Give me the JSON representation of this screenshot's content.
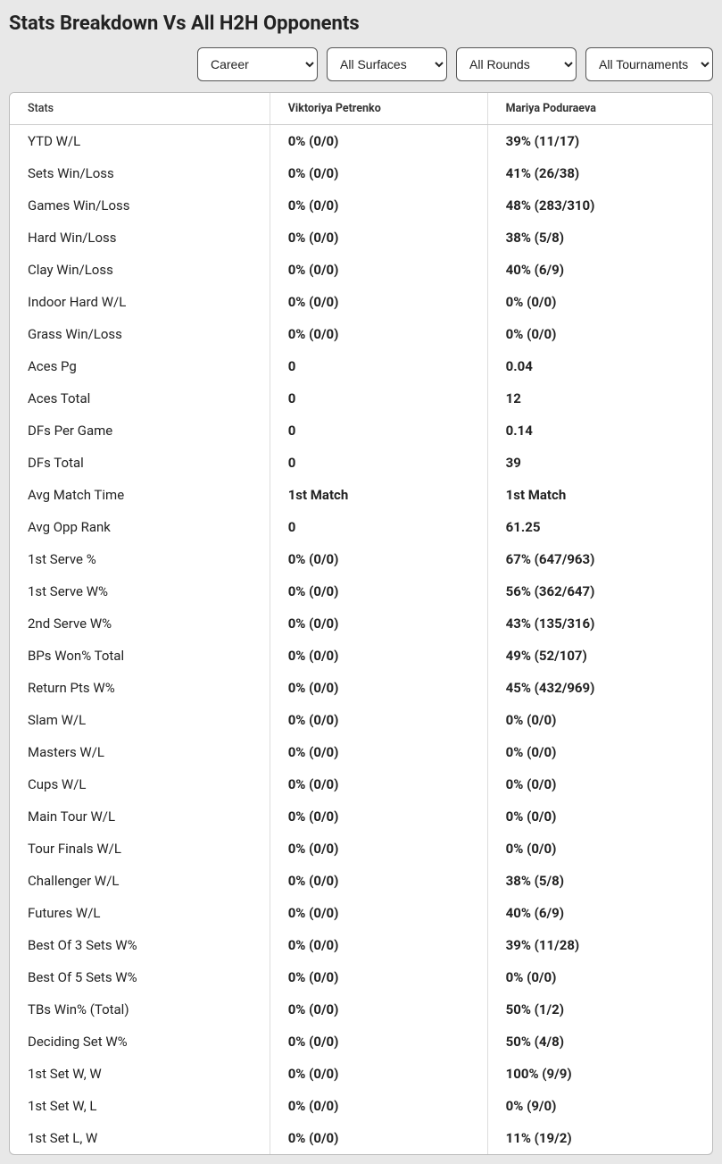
{
  "title": "Stats Breakdown Vs All H2H Opponents",
  "filters": {
    "period": "Career",
    "surface": "All Surfaces",
    "round": "All Rounds",
    "tournament": "All Tournaments"
  },
  "columns": {
    "stats": "Stats",
    "player1": "Viktoriya Petrenko",
    "player2": "Mariya Poduraeva"
  },
  "rows": [
    {
      "label": "YTD W/L",
      "p1": "0% (0/0)",
      "p2": "39% (11/17)"
    },
    {
      "label": "Sets Win/Loss",
      "p1": "0% (0/0)",
      "p2": "41% (26/38)"
    },
    {
      "label": "Games Win/Loss",
      "p1": "0% (0/0)",
      "p2": "48% (283/310)"
    },
    {
      "label": "Hard Win/Loss",
      "p1": "0% (0/0)",
      "p2": "38% (5/8)"
    },
    {
      "label": "Clay Win/Loss",
      "p1": "0% (0/0)",
      "p2": "40% (6/9)"
    },
    {
      "label": "Indoor Hard W/L",
      "p1": "0% (0/0)",
      "p2": "0% (0/0)"
    },
    {
      "label": "Grass Win/Loss",
      "p1": "0% (0/0)",
      "p2": "0% (0/0)"
    },
    {
      "label": "Aces Pg",
      "p1": "0",
      "p2": "0.04"
    },
    {
      "label": "Aces Total",
      "p1": "0",
      "p2": "12"
    },
    {
      "label": "DFs Per Game",
      "p1": "0",
      "p2": "0.14"
    },
    {
      "label": "DFs Total",
      "p1": "0",
      "p2": "39"
    },
    {
      "label": "Avg Match Time",
      "p1": "1st Match",
      "p2": "1st Match"
    },
    {
      "label": "Avg Opp Rank",
      "p1": "0",
      "p2": "61.25"
    },
    {
      "label": "1st Serve %",
      "p1": "0% (0/0)",
      "p2": "67% (647/963)"
    },
    {
      "label": "1st Serve W%",
      "p1": "0% (0/0)",
      "p2": "56% (362/647)"
    },
    {
      "label": "2nd Serve W%",
      "p1": "0% (0/0)",
      "p2": "43% (135/316)"
    },
    {
      "label": "BPs Won% Total",
      "p1": "0% (0/0)",
      "p2": "49% (52/107)"
    },
    {
      "label": "Return Pts W%",
      "p1": "0% (0/0)",
      "p2": "45% (432/969)"
    },
    {
      "label": "Slam W/L",
      "p1": "0% (0/0)",
      "p2": "0% (0/0)"
    },
    {
      "label": "Masters W/L",
      "p1": "0% (0/0)",
      "p2": "0% (0/0)"
    },
    {
      "label": "Cups W/L",
      "p1": "0% (0/0)",
      "p2": "0% (0/0)"
    },
    {
      "label": "Main Tour W/L",
      "p1": "0% (0/0)",
      "p2": "0% (0/0)"
    },
    {
      "label": "Tour Finals W/L",
      "p1": "0% (0/0)",
      "p2": "0% (0/0)"
    },
    {
      "label": "Challenger W/L",
      "p1": "0% (0/0)",
      "p2": "38% (5/8)"
    },
    {
      "label": "Futures W/L",
      "p1": "0% (0/0)",
      "p2": "40% (6/9)"
    },
    {
      "label": "Best Of 3 Sets W%",
      "p1": "0% (0/0)",
      "p2": "39% (11/28)"
    },
    {
      "label": "Best Of 5 Sets W%",
      "p1": "0% (0/0)",
      "p2": "0% (0/0)"
    },
    {
      "label": "TBs Win% (Total)",
      "p1": "0% (0/0)",
      "p2": "50% (1/2)"
    },
    {
      "label": "Deciding Set W%",
      "p1": "0% (0/0)",
      "p2": "50% (4/8)"
    },
    {
      "label": "1st Set W, W",
      "p1": "0% (0/0)",
      "p2": "100% (9/9)"
    },
    {
      "label": "1st Set W, L",
      "p1": "0% (0/0)",
      "p2": "0% (9/0)"
    },
    {
      "label": "1st Set L, W",
      "p1": "0% (0/0)",
      "p2": "11% (19/2)"
    }
  ]
}
